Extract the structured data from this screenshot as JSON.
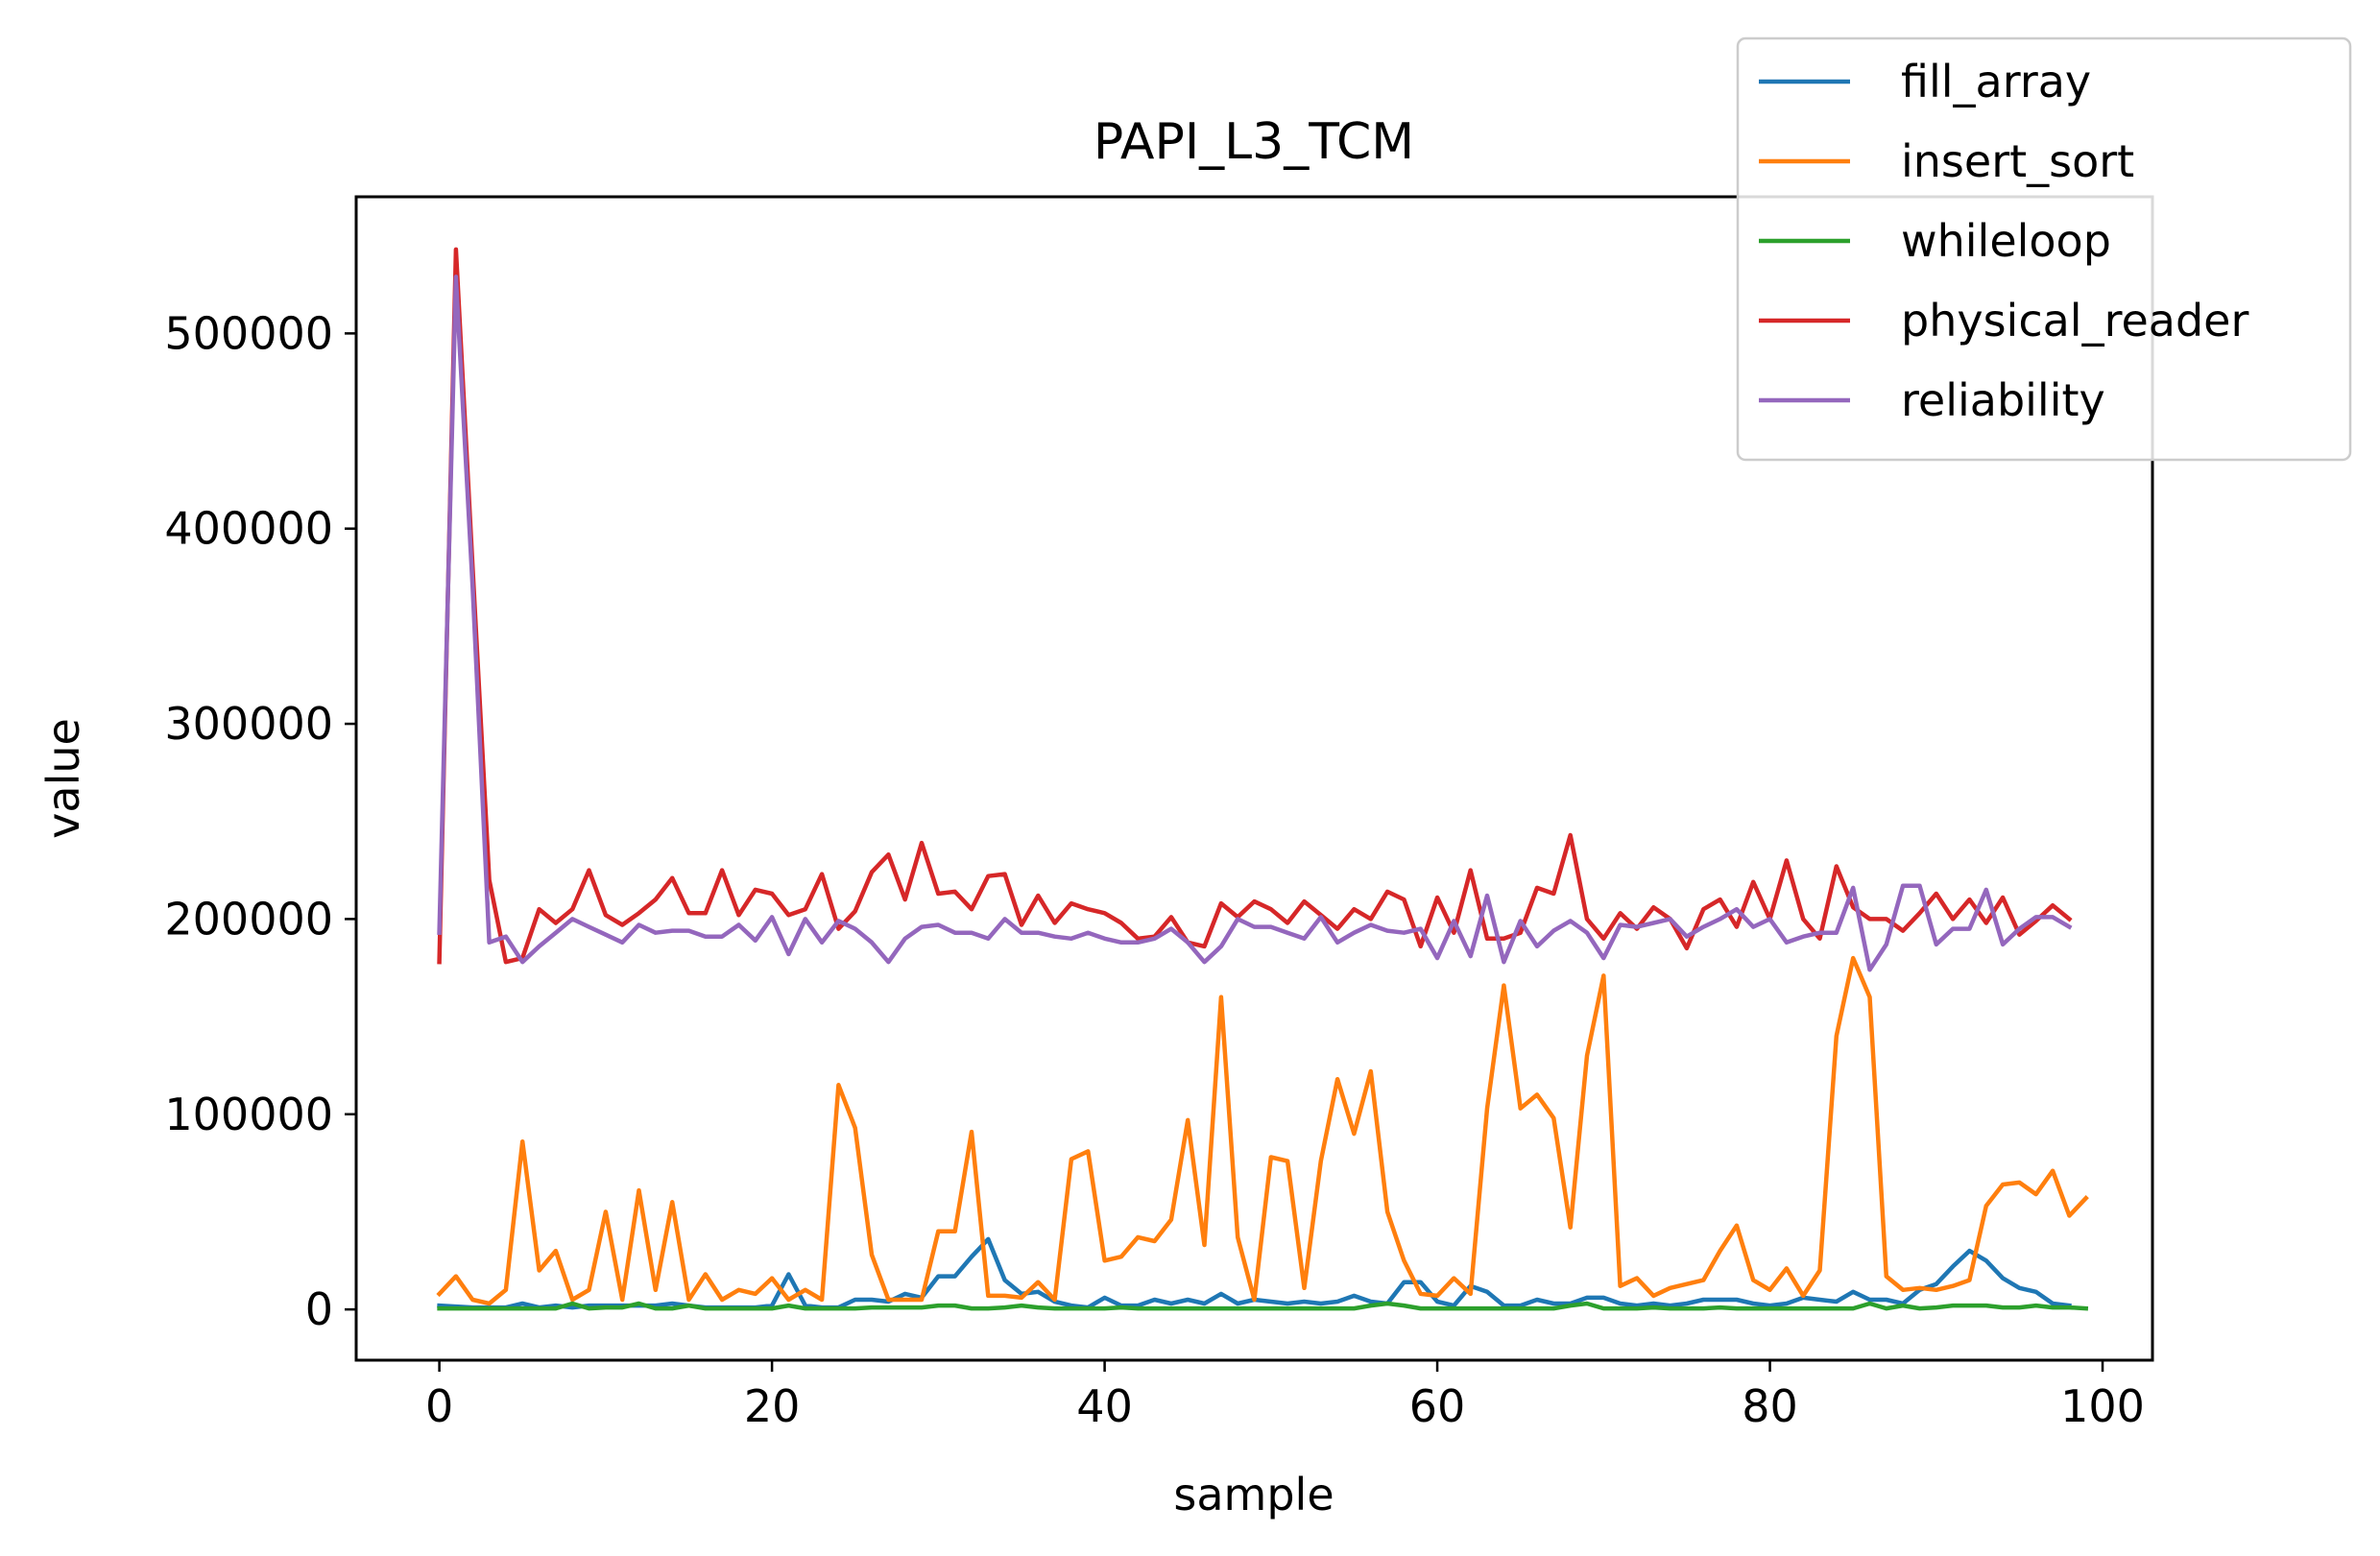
{
  "chart_data": {
    "type": "line",
    "title": "PAPI_L3_TCM",
    "xlabel": "sample",
    "ylabel": "value",
    "xlim": [
      -5,
      103
    ],
    "ylim": [
      -26000,
      570000
    ],
    "xticks": [
      0,
      20,
      40,
      60,
      80,
      100
    ],
    "yticks": [
      0,
      100000,
      200000,
      300000,
      400000,
      500000
    ],
    "legend": "top-right",
    "grid": false,
    "series": [
      {
        "name": "fill_array",
        "color": "#1f77b4",
        "values": [
          2000,
          1500,
          1000,
          1000,
          1000,
          3000,
          1000,
          2000,
          1000,
          2000,
          2000,
          2000,
          2000,
          2000,
          3000,
          2000,
          1000,
          1000,
          1000,
          1000,
          2000,
          18000,
          2000,
          1000,
          1000,
          5000,
          5000,
          4000,
          8000,
          6000,
          17000,
          17000,
          27000,
          36000,
          15000,
          8000,
          9000,
          4000,
          2000,
          1000,
          6000,
          2000,
          2000,
          5000,
          3000,
          5000,
          3000,
          8000,
          3000,
          5000,
          4000,
          3000,
          4000,
          3000,
          4000,
          7000,
          4000,
          3000,
          14000,
          14000,
          4000,
          2000,
          12000,
          9000,
          2000,
          2000,
          5000,
          3000,
          3000,
          6000,
          6000,
          3000,
          2000,
          3000,
          2000,
          3000,
          5000,
          5000,
          5000,
          3000,
          2000,
          3000,
          6000,
          5000,
          4000,
          9000,
          5000,
          5000,
          3000,
          10000,
          13000,
          22000,
          30000,
          25000,
          16000,
          11000,
          9000,
          3000,
          2000
        ]
      },
      {
        "name": "insert_sort",
        "color": "#ff7f0e",
        "values": [
          8000,
          17000,
          5000,
          3000,
          10000,
          86000,
          20000,
          30000,
          5000,
          10000,
          50000,
          5000,
          61000,
          10000,
          55000,
          5000,
          18000,
          5000,
          10000,
          8000,
          16000,
          5000,
          10000,
          5000,
          115000,
          93000,
          28000,
          5000,
          5000,
          5000,
          40000,
          40000,
          91000,
          7000,
          7000,
          6000,
          14000,
          5000,
          77000,
          81000,
          25000,
          27000,
          37000,
          35000,
          46000,
          97000,
          33000,
          160000,
          37000,
          5000,
          78000,
          76000,
          11000,
          76000,
          118000,
          90000,
          122000,
          50000,
          25000,
          8000,
          7000,
          16000,
          8000,
          103000,
          166000,
          103000,
          110000,
          98000,
          42000,
          130000,
          171000,
          12000,
          16000,
          7000,
          11000,
          13000,
          15000,
          30000,
          43000,
          15000,
          10000,
          21000,
          7000,
          20000,
          140000,
          180000,
          160000,
          17000,
          10000,
          11000,
          10000,
          12000,
          15000,
          53000,
          64000,
          65000,
          59000,
          71000,
          48000,
          57000
        ]
      },
      {
        "name": "whileloop",
        "color": "#2ca02c",
        "values": [
          500,
          500,
          500,
          500,
          500,
          500,
          500,
          500,
          3000,
          500,
          1000,
          1000,
          3000,
          500,
          500,
          2000,
          500,
          500,
          500,
          500,
          500,
          2000,
          500,
          500,
          500,
          500,
          1000,
          1000,
          1000,
          1000,
          2000,
          2000,
          500,
          500,
          1000,
          2000,
          1000,
          500,
          500,
          500,
          500,
          1000,
          500,
          500,
          500,
          500,
          500,
          500,
          500,
          500,
          500,
          500,
          500,
          500,
          500,
          500,
          2000,
          3000,
          2000,
          500,
          500,
          500,
          500,
          500,
          500,
          500,
          500,
          500,
          2000,
          3000,
          500,
          500,
          500,
          1000,
          500,
          500,
          500,
          1000,
          500,
          500,
          500,
          500,
          500,
          500,
          500,
          500,
          3000,
          500,
          2000,
          500,
          1000,
          2000,
          2000,
          2000,
          1000,
          1000,
          2000,
          1000,
          1000,
          500
        ]
      },
      {
        "name": "physical_reader",
        "color": "#d62728",
        "values": [
          178000,
          543000,
          380000,
          220000,
          178000,
          180000,
          205000,
          198000,
          205000,
          225000,
          202000,
          197000,
          203000,
          210000,
          221000,
          203000,
          203000,
          225000,
          202000,
          215000,
          213000,
          202000,
          205000,
          223000,
          195000,
          204000,
          224000,
          233000,
          210000,
          239000,
          213000,
          214000,
          205000,
          222000,
          223000,
          197000,
          212000,
          198000,
          208000,
          205000,
          203000,
          198000,
          190000,
          191000,
          201000,
          188000,
          186000,
          208000,
          201000,
          209000,
          205000,
          198000,
          209000,
          202000,
          195000,
          205000,
          200000,
          214000,
          210000,
          186000,
          211000,
          193000,
          225000,
          190000,
          190000,
          193000,
          216000,
          213000,
          243000,
          200000,
          190000,
          203000,
          195000,
          206000,
          200000,
          185000,
          205000,
          210000,
          196000,
          219000,
          200000,
          230000,
          200000,
          190000,
          227000,
          206000,
          200000,
          200000,
          194000,
          203000,
          213000,
          200000,
          210000,
          198000,
          211000,
          192000,
          199000,
          207000,
          200000
        ]
      },
      {
        "name": "reliability",
        "color": "#9467bd",
        "values": [
          193000,
          529000,
          370000,
          188000,
          191000,
          178000,
          186000,
          193000,
          200000,
          196000,
          192000,
          188000,
          197000,
          193000,
          194000,
          194000,
          191000,
          191000,
          197000,
          189000,
          201000,
          182000,
          200000,
          188000,
          199000,
          195000,
          188000,
          178000,
          190000,
          196000,
          197000,
          193000,
          193000,
          190000,
          200000,
          193000,
          193000,
          191000,
          190000,
          193000,
          190000,
          188000,
          188000,
          190000,
          195000,
          188000,
          178000,
          186000,
          200000,
          196000,
          196000,
          193000,
          190000,
          201000,
          188000,
          193000,
          197000,
          194000,
          193000,
          195000,
          180000,
          199000,
          181000,
          212000,
          178000,
          199000,
          186000,
          194000,
          199000,
          193000,
          180000,
          197000,
          196000,
          198000,
          200000,
          191000,
          196000,
          200000,
          205000,
          196000,
          200000,
          188000,
          191000,
          193000,
          193000,
          216000,
          174000,
          187000,
          217000,
          217000,
          187000,
          195000,
          195000,
          215000,
          187000,
          195000,
          201000,
          201000,
          196000
        ]
      }
    ]
  }
}
